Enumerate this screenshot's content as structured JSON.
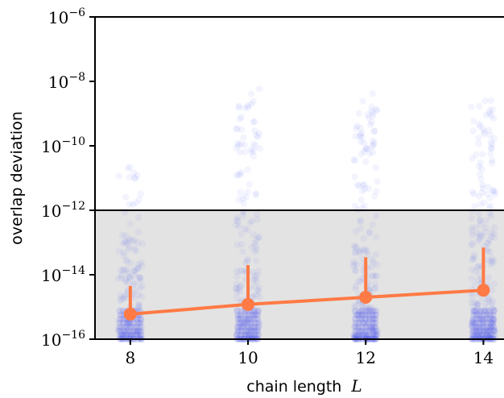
{
  "chart_data": {
    "type": "scatter",
    "title": "",
    "xlabel": "chain length",
    "xlabel_var": "L",
    "ylabel": "overlap deviation",
    "yscale": "log",
    "ylim": [
      1e-16,
      1e-06
    ],
    "xlim": [
      7.4,
      14.35
    ],
    "x_ticks": [
      8,
      10,
      12,
      14
    ],
    "x_tick_labels": [
      "8",
      "10",
      "12",
      "14"
    ],
    "y_ticks_exponent": [
      -16,
      -14,
      -12,
      -10,
      -8,
      -6
    ],
    "y_tick_base": "10",
    "y_tick_exponents_text": [
      "−16",
      "−14",
      "−12",
      "−10",
      "−8",
      "−6"
    ],
    "threshold": 1e-12,
    "threshold_region": "below threshold shaded gray",
    "grid": false,
    "series": [
      {
        "kind": "raw samples (jittered scatter)",
        "color": "#5b5ff0",
        "groups": [
          {
            "x": 8,
            "n": 170,
            "log10_min": -16,
            "log10_max": -10.6
          },
          {
            "x": 10,
            "n": 200,
            "log10_min": -16,
            "log10_max": -8.0
          },
          {
            "x": 12,
            "n": 230,
            "log10_min": -16,
            "log10_max": -8.3
          },
          {
            "x": 14,
            "n": 260,
            "log10_min": -16,
            "log10_max": -8.5
          }
        ]
      },
      {
        "kind": "median with error bars",
        "color": "#ff7a45",
        "x": [
          8,
          10,
          12,
          14
        ],
        "y": [
          6e-16,
          1.2e-15,
          2e-15,
          3.3e-15
        ],
        "err_upper": [
          4.5e-15,
          2e-14,
          3.5e-14,
          7e-14
        ]
      }
    ]
  }
}
